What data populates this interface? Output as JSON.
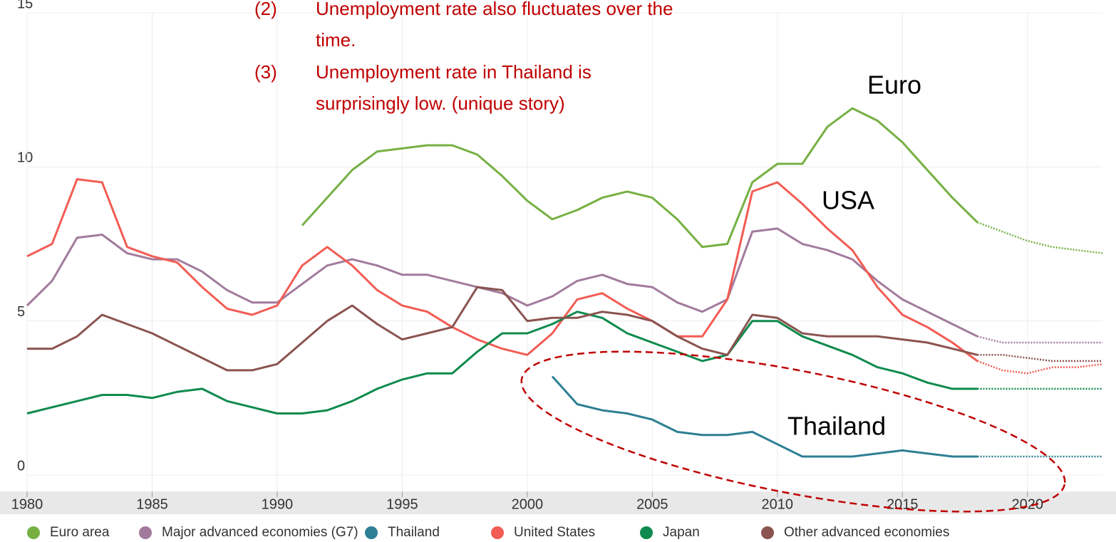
{
  "chart_data": {
    "type": "line",
    "annotations": [
      {
        "number": "(2)",
        "lines": [
          "Unemployment rate also fluctuates over the",
          "time."
        ]
      },
      {
        "number": "(3)",
        "lines": [
          "Unemployment rate in Thailand is",
          "surprisingly low. (unique story)"
        ]
      }
    ],
    "labels": [
      "Euro",
      "USA",
      "Thailand"
    ],
    "x": [
      1980,
      1981,
      1982,
      1983,
      1984,
      1985,
      1986,
      1987,
      1988,
      1989,
      1990,
      1991,
      1992,
      1993,
      1994,
      1995,
      1996,
      1997,
      1998,
      1999,
      2000,
      2001,
      2002,
      2003,
      2004,
      2005,
      2006,
      2007,
      2008,
      2009,
      2010,
      2011,
      2012,
      2013,
      2014,
      2015,
      2016,
      2017,
      2018,
      2019,
      2020,
      2021,
      2022,
      2023
    ],
    "xlim": [
      1980,
      2023
    ],
    "xticks": [
      1980,
      1985,
      1990,
      1995,
      2000,
      2005,
      2010,
      2015,
      2020
    ],
    "ylim": [
      0,
      15
    ],
    "yticks": [
      0,
      5,
      10,
      15
    ],
    "grid": true,
    "forecast_from": 2018,
    "legend": "bottom",
    "series": [
      {
        "name": "Euro area",
        "color": "#76b043",
        "values": [
          null,
          null,
          null,
          null,
          null,
          null,
          null,
          null,
          null,
          null,
          null,
          8.1,
          9.0,
          9.9,
          10.5,
          10.6,
          10.7,
          10.7,
          10.4,
          9.7,
          8.9,
          8.3,
          8.6,
          9.0,
          9.2,
          9.0,
          8.3,
          7.4,
          7.5,
          9.5,
          10.1,
          10.1,
          11.3,
          11.9,
          11.5,
          10.8,
          9.9,
          9.0,
          8.2,
          7.9,
          7.6,
          7.4,
          7.3,
          7.2
        ]
      },
      {
        "name": "Major advanced economies (G7)",
        "color": "#a27b9c",
        "values": [
          5.5,
          6.3,
          7.7,
          7.8,
          7.2,
          7.0,
          7.0,
          6.6,
          6.0,
          5.6,
          5.6,
          6.2,
          6.8,
          7.0,
          6.8,
          6.5,
          6.5,
          6.3,
          6.1,
          5.9,
          5.5,
          5.8,
          6.3,
          6.5,
          6.2,
          6.1,
          5.6,
          5.3,
          5.7,
          7.9,
          8.0,
          7.5,
          7.3,
          7.0,
          6.3,
          5.7,
          5.3,
          4.9,
          4.5,
          4.3,
          4.3,
          4.3,
          4.3,
          4.3
        ]
      },
      {
        "name": "Thailand",
        "color": "#2e7f93",
        "values": [
          null,
          null,
          null,
          null,
          null,
          null,
          null,
          null,
          null,
          null,
          null,
          null,
          null,
          null,
          null,
          null,
          null,
          null,
          null,
          null,
          null,
          3.2,
          2.3,
          2.1,
          2.0,
          1.8,
          1.4,
          1.3,
          1.3,
          1.4,
          1.0,
          0.6,
          0.6,
          0.6,
          0.7,
          0.8,
          0.7,
          0.6,
          0.6,
          0.6,
          0.6,
          0.6,
          0.6,
          0.6
        ]
      },
      {
        "name": "United States",
        "color": "#f25c54",
        "values": [
          7.1,
          7.5,
          9.6,
          9.5,
          7.4,
          7.1,
          6.9,
          6.1,
          5.4,
          5.2,
          5.5,
          6.8,
          7.4,
          6.8,
          6.0,
          5.5,
          5.3,
          4.8,
          4.4,
          4.1,
          3.9,
          4.6,
          5.7,
          5.9,
          5.4,
          5.0,
          4.5,
          4.5,
          5.7,
          9.2,
          9.5,
          8.8,
          8.0,
          7.3,
          6.1,
          5.2,
          4.8,
          4.3,
          3.7,
          3.4,
          3.3,
          3.5,
          3.5,
          3.6
        ]
      },
      {
        "name": "Japan",
        "color": "#0f8a4e",
        "values": [
          2.0,
          2.2,
          2.4,
          2.6,
          2.6,
          2.5,
          2.7,
          2.8,
          2.4,
          2.2,
          2.0,
          2.0,
          2.1,
          2.4,
          2.8,
          3.1,
          3.3,
          3.3,
          4.0,
          4.6,
          4.6,
          4.9,
          5.3,
          5.1,
          4.6,
          4.3,
          4.0,
          3.7,
          3.9,
          5.0,
          5.0,
          4.5,
          4.2,
          3.9,
          3.5,
          3.3,
          3.0,
          2.8,
          2.8,
          2.8,
          2.8,
          2.8,
          2.8,
          2.8
        ]
      },
      {
        "name": "Other advanced economies",
        "color": "#8b5450",
        "values": [
          4.1,
          4.1,
          4.5,
          5.2,
          4.9,
          4.6,
          4.2,
          3.8,
          3.4,
          3.4,
          3.6,
          4.3,
          5.0,
          5.5,
          4.9,
          4.4,
          4.6,
          4.8,
          6.1,
          6.0,
          5.0,
          5.1,
          5.1,
          5.3,
          5.2,
          5.0,
          4.5,
          4.1,
          3.9,
          5.2,
          5.1,
          4.6,
          4.5,
          4.5,
          4.5,
          4.4,
          4.3,
          4.1,
          3.9,
          3.9,
          3.8,
          3.7,
          3.7,
          3.7
        ]
      }
    ]
  }
}
